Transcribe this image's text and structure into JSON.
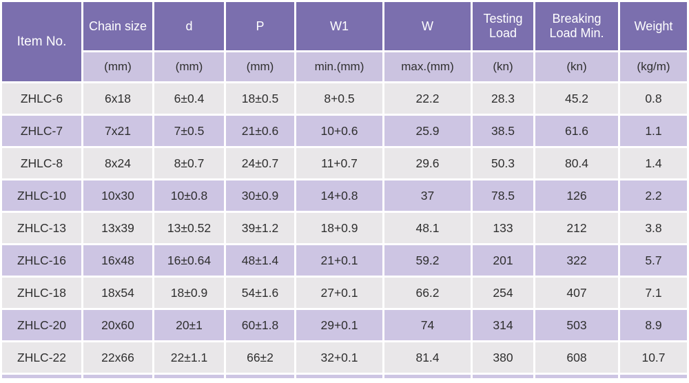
{
  "colors": {
    "header_bg": "#7b6fae",
    "unit_row_bg": "#cbc3e0",
    "row_alt_bg": "#cdc5e3",
    "row_bg": "#e9e7e9",
    "header_text": "#ffffff",
    "body_text": "#2f2f2f",
    "grid_gap": "#ffffff"
  },
  "chart_data": {
    "type": "table",
    "title": "",
    "columns": [
      {
        "label": "Item No.",
        "unit": ""
      },
      {
        "label": "Chain size",
        "unit": "(mm)"
      },
      {
        "label": "d",
        "unit": "(mm)"
      },
      {
        "label": "P",
        "unit": "(mm)"
      },
      {
        "label": "W1",
        "unit": "min.(mm)"
      },
      {
        "label": "W",
        "unit": "max.(mm)"
      },
      {
        "label": "Testing Load",
        "unit": "(kn)"
      },
      {
        "label": "Breaking Load Min.",
        "unit": "(kn)"
      },
      {
        "label": "Weight",
        "unit": "(kg/m)"
      }
    ],
    "rows": [
      [
        "ZHLC-6",
        "6x18",
        "6±0.4",
        "18±0.5",
        "8+0.5",
        "22.2",
        "28.3",
        "45.2",
        "0.8"
      ],
      [
        "ZHLC-7",
        "7x21",
        "7±0.5",
        "21±0.6",
        "10+0.6",
        "25.9",
        "38.5",
        "61.6",
        "1.1"
      ],
      [
        "ZHLC-8",
        "8x24",
        "8±0.7",
        "24±0.7",
        "11+0.7",
        "29.6",
        "50.3",
        "80.4",
        "1.4"
      ],
      [
        "ZHLC-10",
        "10x30",
        "10±0.8",
        "30±0.9",
        "14+0.8",
        "37",
        "78.5",
        "126",
        "2.2"
      ],
      [
        "ZHLC-13",
        "13x39",
        "13±0.52",
        "39±1.2",
        "18+0.9",
        "48.1",
        "133",
        "212",
        "3.8"
      ],
      [
        "ZHLC-16",
        "16x48",
        "16±0.64",
        "48±1.4",
        "21+0.1",
        "59.2",
        "201",
        "322",
        "5.7"
      ],
      [
        "ZHLC-18",
        "18x54",
        "18±0.9",
        "54±1.6",
        "27+0.1",
        "66.2",
        "254",
        "407",
        "7.1"
      ],
      [
        "ZHLC-20",
        "20x60",
        "20±1",
        "60±1.8",
        "29+0.1",
        "74",
        "314",
        "503",
        "8.9"
      ],
      [
        "ZHLC-22",
        "22x66",
        "22±1.1",
        "66±2",
        "32+0.1",
        "81.4",
        "380",
        "608",
        "10.7"
      ]
    ]
  }
}
